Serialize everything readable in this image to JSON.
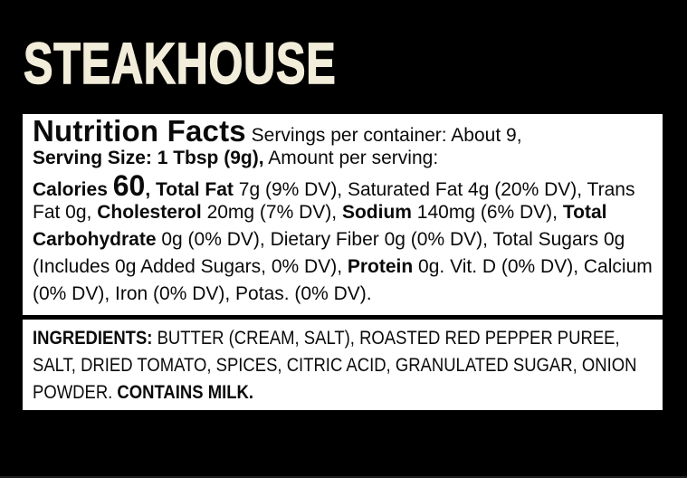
{
  "title": "STEAKHOUSE",
  "colors": {
    "background": "#000000",
    "title_text": "#f2edda",
    "panel_bg": "#ffffff",
    "panel_text": "#0a0a0a"
  },
  "nutrition_panel": {
    "heading": "Nutrition Facts",
    "servings_per_container": "About 9",
    "serving_size": "1 Tbsp (9g)",
    "calories": "60",
    "lines": [
      [
        {
          "t": "Nutrition Facts",
          "s": "h"
        },
        {
          "t": " Servings per container: About 9,",
          "s": "r"
        }
      ],
      [
        {
          "t": "Serving Size: 1 Tbsp (9g),",
          "s": "b"
        },
        {
          "t": " Amount per serving:",
          "s": "r"
        }
      ],
      [
        {
          "t": "Calories ",
          "s": "b"
        },
        {
          "t": "60",
          "s": "big"
        },
        {
          "t": ", ",
          "s": "b"
        },
        {
          "t": "Total Fat",
          "s": "b"
        },
        {
          "t": " 7g (9% DV), Saturated Fat 4g (20% DV), Trans",
          "s": "r"
        }
      ],
      [
        {
          "t": "Fat 0g, ",
          "s": "r"
        },
        {
          "t": "Cholesterol",
          "s": "b"
        },
        {
          "t": " 20mg (7% DV), ",
          "s": "r"
        },
        {
          "t": "Sodium",
          "s": "b"
        },
        {
          "t": " 140mg (6% DV), ",
          "s": "r"
        },
        {
          "t": "Total",
          "s": "b"
        }
      ],
      [
        {
          "t": "Carbohydrate",
          "s": "b"
        },
        {
          "t": " 0g (0% DV), Dietary Fiber 0g (0% DV), Total Sugars 0g",
          "s": "r"
        }
      ],
      [
        {
          "t": "(Includes 0g Added Sugars, 0% DV), ",
          "s": "r"
        },
        {
          "t": "Protein",
          "s": "b"
        },
        {
          "t": " 0g. Vit. D (0% DV), Calcium",
          "s": "r"
        }
      ],
      [
        {
          "t": "(0% DV), Iron (0% DV), Potas. (0% DV).",
          "s": "r"
        }
      ]
    ]
  },
  "ingredients_panel": {
    "lines": [
      [
        {
          "t": "INGREDIENTS:",
          "s": "b"
        },
        {
          "t": " BUTTER (CREAM, SALT), ROASTED RED PEPPER PUREE,",
          "s": "r"
        }
      ],
      [
        {
          "t": "SALT, DRIED TOMATO, SPICES, CITRIC ACID, GRANULATED SUGAR, ONION",
          "s": "r"
        }
      ],
      [
        {
          "t": "POWDER. ",
          "s": "r"
        },
        {
          "t": "CONTAINS MILK.",
          "s": "b"
        }
      ]
    ]
  }
}
